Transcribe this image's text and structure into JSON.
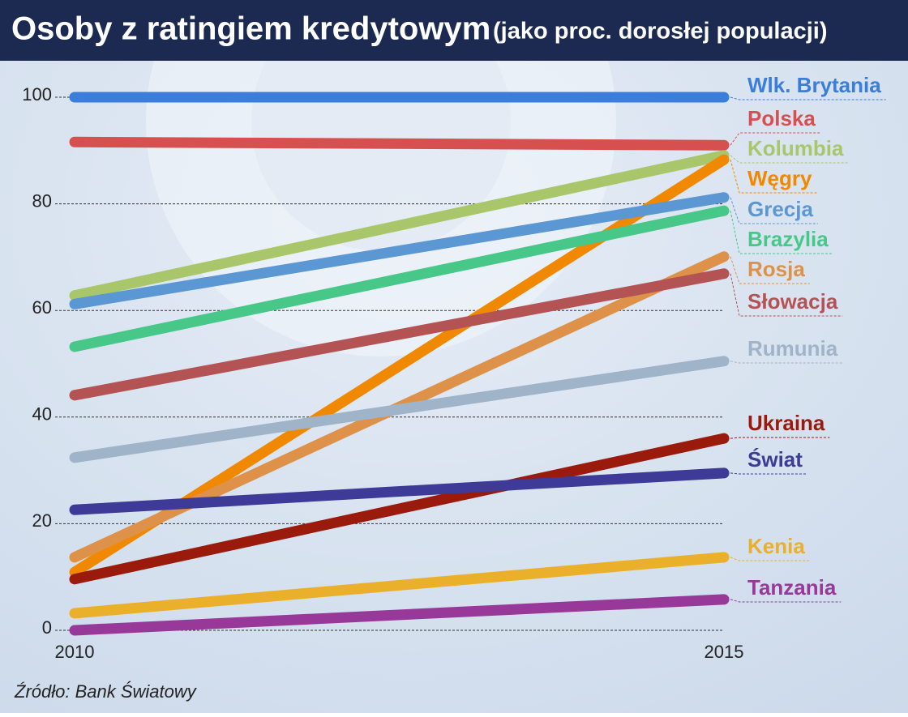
{
  "chart_data": {
    "type": "line",
    "title": "Osoby z ratingiem kredytowym",
    "subtitle": "(jako proc. dorosłej populacji)",
    "source": "Źródło: Bank Światowy",
    "x": [
      2010,
      2015
    ],
    "xlim": [
      2010,
      2015
    ],
    "xticks": [
      2010,
      2015
    ],
    "ylim": [
      0,
      100
    ],
    "yticks": [
      0,
      20,
      40,
      60,
      80,
      100
    ],
    "grid": true,
    "series": [
      {
        "name": "Wlk. Brytania",
        "color": "#3b7ddb",
        "values": [
          100,
          100
        ]
      },
      {
        "name": "Polska",
        "color": "#d5504f",
        "values": [
          91.6,
          91.0
        ]
      },
      {
        "name": "Kolumbia",
        "color": "#a9c76a",
        "values": [
          62.8,
          89.1
        ]
      },
      {
        "name": "Węgry",
        "color": "#f08800",
        "values": [
          10.9,
          88.3
        ]
      },
      {
        "name": "Grecja",
        "color": "#5b97d2",
        "values": [
          61.2,
          81.2
        ]
      },
      {
        "name": "Brazylia",
        "color": "#47c888",
        "values": [
          53.2,
          78.7
        ]
      },
      {
        "name": "Rosja",
        "color": "#de9148",
        "values": [
          13.7,
          70.1
        ]
      },
      {
        "name": "Słowacja",
        "color": "#b35353",
        "values": [
          44.1,
          66.9
        ]
      },
      {
        "name": "Rumunia",
        "color": "#9fb3c9",
        "values": [
          32.4,
          50.5
        ]
      },
      {
        "name": "Ukraina",
        "color": "#9a1a0c",
        "values": [
          9.6,
          36.0
        ]
      },
      {
        "name": "Świat",
        "color": "#3e3a98",
        "values": [
          22.6,
          29.5
        ]
      },
      {
        "name": "Kenia",
        "color": "#ebb02b",
        "values": [
          3.2,
          13.7
        ]
      },
      {
        "name": "Tanzania",
        "color": "#98399a",
        "values": [
          0.0,
          5.8
        ]
      }
    ]
  }
}
